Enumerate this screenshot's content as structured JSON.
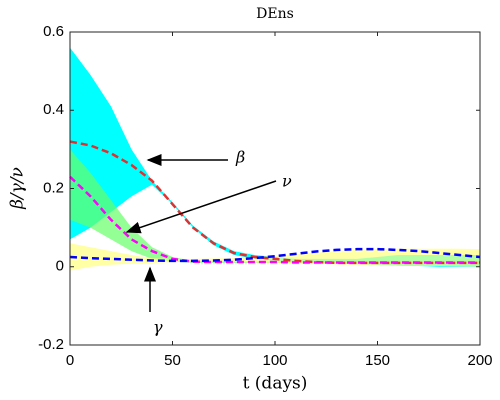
{
  "chart_data": {
    "type": "line",
    "title": "DEns",
    "xlabel": "t (days)",
    "ylabel": "β/γ/ν",
    "x": [
      0,
      10,
      20,
      30,
      40,
      50,
      60,
      70,
      80,
      90,
      100,
      110,
      120,
      130,
      140,
      150,
      160,
      170,
      180,
      190,
      200
    ],
    "xlim": [
      0,
      200
    ],
    "xticks": [
      0,
      50,
      100,
      150,
      200
    ],
    "ylim": [
      -0.2,
      0.6
    ],
    "yticks": [
      -0.2,
      0,
      0.2,
      0.4,
      0.6
    ],
    "bands": [
      {
        "color": "#00ffff",
        "upper": [
          0.56,
          0.49,
          0.41,
          0.3,
          0.22,
          0.165,
          0.105,
          0.065,
          0.04,
          0.03,
          0.025,
          0.02,
          0.02,
          0.02,
          0.02,
          0.025,
          0.03,
          0.03,
          0.03,
          0.03,
          0.03
        ],
        "lower": [
          0.07,
          0.1,
          0.14,
          0.18,
          0.21,
          0.16,
          0.1,
          0.055,
          0.03,
          0.02,
          0.015,
          0.012,
          0.01,
          0.008,
          0.006,
          0.005,
          0.003,
          0.002,
          0,
          0,
          0
        ]
      },
      {
        "color": "#66ff66",
        "upper": [
          0.3,
          0.24,
          0.17,
          0.1,
          0.05,
          0.025,
          0.015,
          0.014,
          0.014,
          0.014,
          0.014,
          0.013,
          0.013,
          0.013,
          0.013,
          0.013,
          0.013,
          0.013,
          0.013,
          0.013,
          0.013
        ],
        "lower": [
          0.12,
          0.1,
          0.07,
          0.04,
          0.02,
          0.013,
          0.01,
          0.01,
          0.01,
          0.01,
          0.01,
          0.009,
          0.009,
          0.009,
          0.009,
          0.009,
          0.009,
          0.009,
          0.009,
          0.009,
          0.009
        ]
      },
      {
        "color": "#ffff80",
        "upper": [
          0.06,
          0.05,
          0.04,
          0.03,
          0.022,
          0.02,
          0.02,
          0.021,
          0.022,
          0.025,
          0.028,
          0.032,
          0.036,
          0.04,
          0.043,
          0.045,
          0.046,
          0.046,
          0.046,
          0.046,
          0.045
        ],
        "lower": [
          -0.01,
          0,
          0.005,
          0.008,
          0.01,
          0.012,
          0.013,
          0.013,
          0.012,
          0.011,
          0.01,
          0.009,
          0.008,
          0.006,
          0.005,
          0.004,
          0.003,
          0.002,
          0.002,
          0.001,
          0
        ]
      }
    ],
    "series": [
      {
        "color": "#e03030",
        "values": [
          0.32,
          0.31,
          0.29,
          0.26,
          0.22,
          0.16,
          0.1,
          0.06,
          0.035,
          0.025,
          0.02,
          0.015,
          0.012,
          0.01,
          0.01,
          0.01,
          0.01,
          0.01,
          0.01,
          0.01,
          0.01
        ]
      },
      {
        "color": "#ff00ff",
        "values": [
          0.23,
          0.18,
          0.12,
          0.07,
          0.04,
          0.02,
          0.013,
          0.012,
          0.012,
          0.012,
          0.012,
          0.011,
          0.011,
          0.011,
          0.011,
          0.011,
          0.011,
          0.011,
          0.011,
          0.011,
          0.011
        ]
      },
      {
        "color": "#0000ff",
        "values": [
          0.025,
          0.022,
          0.02,
          0.018,
          0.016,
          0.015,
          0.015,
          0.016,
          0.018,
          0.022,
          0.027,
          0.033,
          0.039,
          0.043,
          0.045,
          0.045,
          0.043,
          0.04,
          0.035,
          0.03,
          0.025
        ]
      }
    ],
    "annotations": [
      "β",
      "ν",
      "γ"
    ]
  }
}
